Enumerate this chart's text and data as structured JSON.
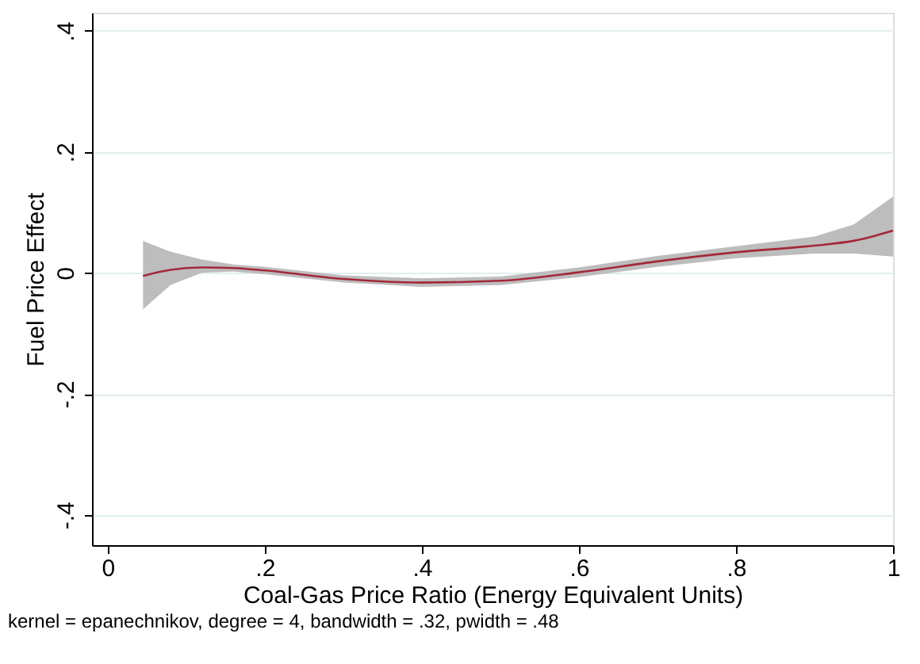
{
  "chart_data": {
    "type": "line",
    "xlabel": "Coal-Gas Price Ratio (Energy Equivalent Units)",
    "ylabel": "Fuel Price Effect",
    "x": [
      0.045,
      0.08,
      0.12,
      0.16,
      0.2,
      0.3,
      0.4,
      0.5,
      0.6,
      0.7,
      0.8,
      0.9,
      0.95,
      1.0
    ],
    "series": [
      {
        "color": "#a3283a",
        "values": [
          -0.005,
          0.005,
          0.009,
          0.008,
          0.004,
          -0.01,
          -0.016,
          -0.013,
          0.001,
          0.019,
          0.034,
          0.045,
          0.053,
          0.07
        ],
        "lower": [
          -0.06,
          -0.02,
          0.0,
          0.002,
          -0.002,
          -0.016,
          -0.023,
          -0.02,
          -0.007,
          0.01,
          0.024,
          0.032,
          0.032,
          0.027
        ],
        "upper": [
          0.053,
          0.035,
          0.022,
          0.014,
          0.01,
          -0.004,
          -0.009,
          -0.006,
          0.009,
          0.028,
          0.044,
          0.06,
          0.08,
          0.126
        ]
      }
    ],
    "xlim": [
      -0.02,
      1.0
    ],
    "xticks": [
      0,
      {
        "value": 0.2,
        "label": ".2"
      },
      {
        "value": 0.4,
        "label": ".4"
      },
      {
        "value": 0.6,
        "label": ".6"
      },
      {
        "value": 0.8,
        "label": ".8"
      },
      1
    ],
    "ylim": [
      -0.45,
      0.43
    ],
    "yticks": [
      {
        "value": -0.4,
        "label": "-.4"
      },
      {
        "value": -0.2,
        "label": "-.2"
      },
      0,
      {
        "value": 0.2,
        "label": ".2"
      },
      {
        "value": 0.4,
        "label": ".4"
      }
    ],
    "grid": "y",
    "marker": "none",
    "line_style": "solid",
    "annotations": [
      "kernel = epanechnikov, degree = 4, bandwidth = .32, pwidth = .48"
    ]
  }
}
